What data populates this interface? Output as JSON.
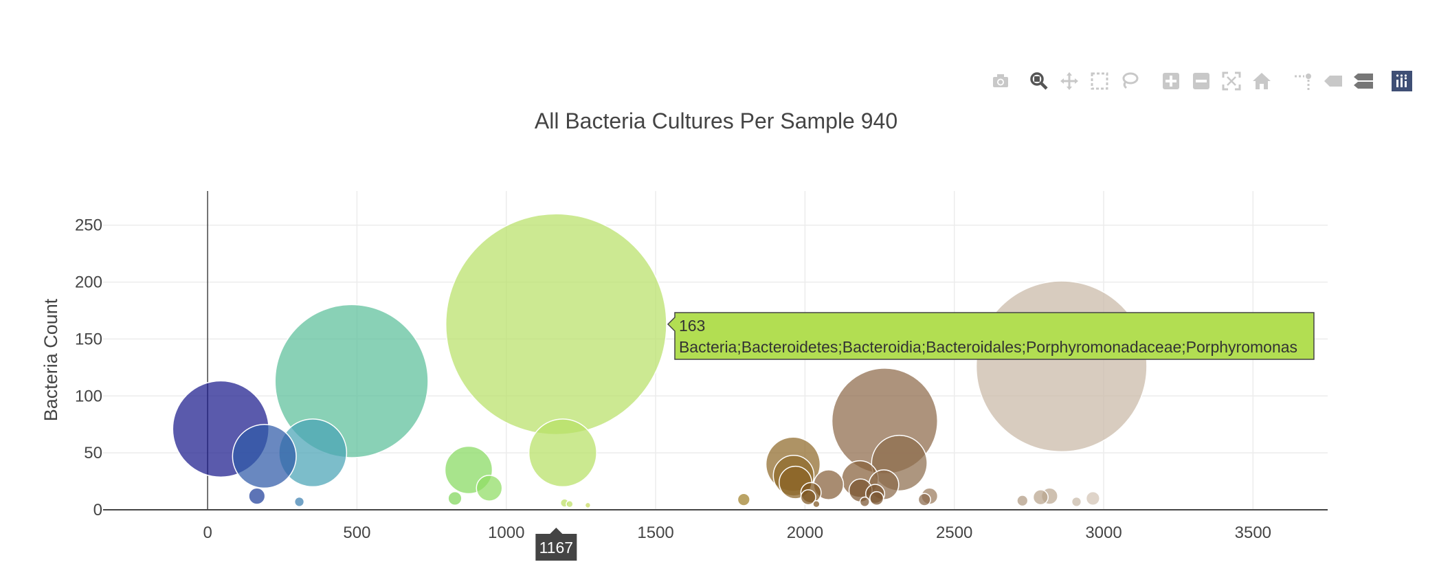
{
  "modebar": {
    "buttons": [
      {
        "name": "download-plot-button",
        "icon": "camera-icon"
      },
      {
        "name": "zoom-button",
        "icon": "zoom-magnifier-icon",
        "active": true
      },
      {
        "name": "pan-button",
        "icon": "pan-arrows-icon"
      },
      {
        "name": "box-select-button",
        "icon": "box-select-icon"
      },
      {
        "name": "lasso-select-button",
        "icon": "lasso-icon"
      },
      {
        "name": "zoom-in-button",
        "icon": "zoom-in-plus-icon"
      },
      {
        "name": "zoom-out-button",
        "icon": "zoom-out-minus-icon"
      },
      {
        "name": "autoscale-button",
        "icon": "autoscale-icon"
      },
      {
        "name": "reset-axes-button",
        "icon": "home-icon"
      },
      {
        "name": "toggle-spike-lines-button",
        "icon": "spike-lines-icon"
      },
      {
        "name": "hover-closest-button",
        "icon": "hover-closest-icon"
      },
      {
        "name": "hover-compare-button",
        "icon": "hover-compare-icon"
      },
      {
        "name": "plotly-logo-button",
        "icon": "plotly-logo-icon"
      }
    ]
  },
  "chart_data": {
    "type": "scatter",
    "title": "All Bacteria Cultures Per Sample 940",
    "xlabel": "",
    "ylabel": "Bacteria Count",
    "xlim": [
      -350,
      3750
    ],
    "ylim": [
      0,
      280
    ],
    "xticks": [
      0,
      500,
      1000,
      1500,
      2000,
      2500,
      3000,
      3500
    ],
    "yticks": [
      0,
      50,
      100,
      150,
      200,
      250
    ],
    "grid": true,
    "legend": "none",
    "bubble_size_rule": "marker size proportional to bacteria count",
    "colorscale": "Earth",
    "points": [
      {
        "x": 44,
        "y": 71,
        "color": "#1b1b8c"
      },
      {
        "x": 165,
        "y": 12,
        "color": "#1f3f9a"
      },
      {
        "x": 190,
        "y": 47,
        "color": "#2f5aa8"
      },
      {
        "x": 307,
        "y": 7,
        "color": "#3b7fb0"
      },
      {
        "x": 352,
        "y": 50,
        "color": "#4aa3b5"
      },
      {
        "x": 482,
        "y": 113,
        "color": "#5cbf9a"
      },
      {
        "x": 828,
        "y": 10,
        "color": "#7fd65a"
      },
      {
        "x": 874,
        "y": 35,
        "color": "#86d95f"
      },
      {
        "x": 943,
        "y": 19,
        "color": "#8fdc62"
      },
      {
        "x": 1167,
        "y": 163,
        "color": "#b8e068"
      },
      {
        "x": 1189,
        "y": 50,
        "color": "#b7e065"
      },
      {
        "x": 1195,
        "y": 6,
        "color": "#bce063"
      },
      {
        "x": 1212,
        "y": 5,
        "color": "#bce063"
      },
      {
        "x": 1273,
        "y": 4,
        "color": "#c6d95c"
      },
      {
        "x": 1795,
        "y": 9,
        "color": "#a07f2a"
      },
      {
        "x": 1960,
        "y": 40,
        "color": "#8f6a2a"
      },
      {
        "x": 1962,
        "y": 30,
        "color": "#8f6a2a"
      },
      {
        "x": 1968,
        "y": 24,
        "color": "#8a6426"
      },
      {
        "x": 2011,
        "y": 11,
        "color": "#7d5520"
      },
      {
        "x": 2020,
        "y": 15,
        "color": "#7d5520"
      },
      {
        "x": 2038,
        "y": 5,
        "color": "#7d5520"
      },
      {
        "x": 2079,
        "y": 22,
        "color": "#86603a"
      },
      {
        "x": 2184,
        "y": 27,
        "color": "#86603a"
      },
      {
        "x": 2186,
        "y": 17,
        "color": "#7a5530"
      },
      {
        "x": 2200,
        "y": 7,
        "color": "#7a5530"
      },
      {
        "x": 2235,
        "y": 14,
        "color": "#7a5530"
      },
      {
        "x": 2240,
        "y": 10,
        "color": "#7a5530"
      },
      {
        "x": 2264,
        "y": 22,
        "color": "#8a6a4a"
      },
      {
        "x": 2267,
        "y": 78,
        "color": "#8d6a4a"
      },
      {
        "x": 2316,
        "y": 41,
        "color": "#8d6d4d"
      },
      {
        "x": 2400,
        "y": 9,
        "color": "#8a6a4c"
      },
      {
        "x": 2417,
        "y": 12,
        "color": "#9a7a5c"
      },
      {
        "x": 2728,
        "y": 8,
        "color": "#b09a82"
      },
      {
        "x": 2789,
        "y": 11,
        "color": "#b8a48c"
      },
      {
        "x": 2819,
        "y": 12,
        "color": "#bba892"
      },
      {
        "x": 2859,
        "y": 126,
        "color": "#c9b8a6"
      },
      {
        "x": 2909,
        "y": 7,
        "color": "#c8b8a6"
      },
      {
        "x": 2964,
        "y": 10,
        "color": "#d2c4b4"
      }
    ],
    "hover": {
      "x": 1167,
      "y": 163,
      "text_value": "163",
      "text_label": "Bacteria;Bacteroidetes;Bacteroidia;Bacteroidales;Porphyromonadaceae;Porphyromonas",
      "x_label": "1167",
      "color": "#b2de52"
    }
  }
}
